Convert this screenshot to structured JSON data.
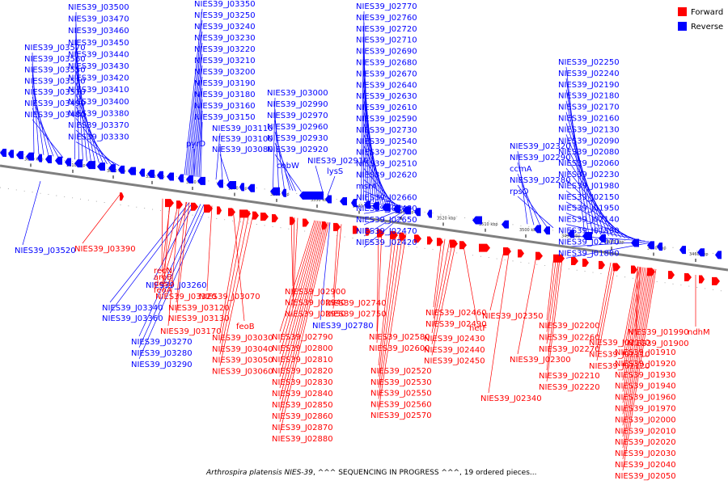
{
  "caption": {
    "organism": "Arthrospira platensis NIES-39",
    "status": ", ^^^ SEQUENCING IN PROGRESS ^^^, 19 ordered pieces..."
  },
  "legend": [
    {
      "label": "Forward",
      "color": "#ff0000"
    },
    {
      "label": "Reverse",
      "color": "#0000ff"
    }
  ],
  "colors": {
    "forward": "#ff0000",
    "reverse": "#0000ff",
    "backbone": "#7f7f7f"
  },
  "scale_ticks": [
    "3620 kbp",
    "3610 kbp",
    "3600 kbp",
    "3590 kbp",
    "3580 kbp",
    "3570 kbp",
    "3560 kbp",
    "3550 kbp",
    "3540 kbp",
    "3530 kbp",
    "3520 kbp",
    "3510 kbp",
    "3500 kbp",
    "3490 kbp",
    "3480 kbp",
    "3470 kbp",
    "3460 kbp"
  ],
  "reverse_labels_top": [
    "NIES39_J03500",
    "NIES39_J03470",
    "NIES39_J03460",
    "NIES39_J03450",
    "NIES39_J03440",
    "NIES39_J03430",
    "NIES39_J03420",
    "NIES39_J03410",
    "NIES39_J03400",
    "NIES39_J03380",
    "NIES39_J03370",
    "NIES39_J03330",
    "NIES39_J03570",
    "NIES39_J03560",
    "NIES39_J03550",
    "NIES39_J03530",
    "NIES39_J03510",
    "NIES39_J03490",
    "NIES39_J03480",
    "NIES39_J03350",
    "NIES39_J03250",
    "NIES39_J03240",
    "NIES39_J03230",
    "NIES39_J03220",
    "NIES39_J03210",
    "NIES39_J03200",
    "NIES39_J03190",
    "NIES39_J03180",
    "NIES39_J03160",
    "NIES39_J03150",
    "pyrD",
    "NIES39_J03110",
    "NIES39_J03100",
    "NIES39_J03080",
    "NIES39_J03000",
    "NIES39_J02990",
    "NIES39_J02970",
    "NIES39_J02960",
    "NIES39_J02930",
    "NIES39_J02920",
    "cobW",
    "NIES39_J02910",
    "lysS",
    "NIES39_J02770",
    "NIES39_J02760",
    "NIES39_J02720",
    "NIES39_J02710",
    "NIES39_J02690",
    "NIES39_J02680",
    "NIES39_J02670",
    "NIES39_J02640",
    "NIES39_J02630",
    "NIES39_J02610",
    "NIES39_J02590",
    "NIES39_J02730",
    "NIES39_J02540",
    "NIES39_J02700",
    "NIES39_J02510",
    "NIES39_J02620",
    "msrA",
    "NIES39_J02660",
    "NIES39_J02480",
    "NIES39_J02650",
    "NIES39_J02470",
    "NIES39_J02420",
    "NIES39_J02320",
    "NIES39_J02290",
    "ccmA",
    "NIES39_J02280",
    "rpsO",
    "NIES39_J02250",
    "NIES39_J02240",
    "NIES39_J02190",
    "NIES39_J02180",
    "NIES39_J02170",
    "NIES39_J02160",
    "NIES39_J02130",
    "NIES39_J02090",
    "NIES39_J02080",
    "NIES39_J02060",
    "NIES39_J02230",
    "NIES39_J01980",
    "NIES39_J02150",
    "NIES39_J01950",
    "NIES39_J02140",
    "NIES39_J01890",
    "NIES39_J02070",
    "NIES39_J01880"
  ],
  "reverse_labels_bottom": [
    "NIES39_J03520",
    "NIES39_J03260",
    "NIES39_J03340",
    "NIES39_J03360",
    "NIES39_J03270",
    "NIES39_J03280",
    "NIES39_J03290",
    "NIES39_J02780"
  ],
  "forward_labels": [
    "NIES39_J03390",
    "recN",
    "aroB",
    "desD",
    "feoA",
    "NIES39_J03320",
    "NIES39_J03120",
    "NIES39_J03130",
    "NIES39_J03070",
    "NIES39_J03170",
    "feoB",
    "NIES39_J03030",
    "NIES39_J03040",
    "NIES39_J03050",
    "NIES39_J03060",
    "NIES39_J02900",
    "NIES39_J02940",
    "NIES39_J02950",
    "NIES39_J02740",
    "NIES39_J02750",
    "NIES39_J02790",
    "NIES39_J02800",
    "NIES39_J02810",
    "NIES39_J02820",
    "NIES39_J02830",
    "NIES39_J02840",
    "NIES39_J02850",
    "NIES39_J02860",
    "NIES39_J02870",
    "NIES39_J02880",
    "NIES39_J02580",
    "NIES39_J02600",
    "NIES39_J02520",
    "NIES39_J02530",
    "NIES39_J02550",
    "NIES39_J02560",
    "NIES39_J02570",
    "NIES39_J02460",
    "NIES39_J02490",
    "hetF",
    "NIES39_J02430",
    "NIES39_J02440",
    "NIES39_J02450",
    "NIES39_J02350",
    "NIES39_J02340",
    "NIES39_J02200",
    "NIES39_J02260",
    "NIES39_J02270",
    "NIES39_J02300",
    "NIES39_J02210",
    "NIES39_J02220",
    "NIES39_J02100",
    "NIES39_J02110",
    "NIES39_J02120",
    "NIES39_J01990",
    "NIES39_J01900",
    "ndhM",
    "NIES39_J01910",
    "NIES39_J01920",
    "NIES39_J01930",
    "NIES39_J01940",
    "NIES39_J01960",
    "NIES39_J01970",
    "NIES39_J02000",
    "NIES39_J02010",
    "NIES39_J02020",
    "NIES39_J02030",
    "NIES39_J02040",
    "NIES39_J02050"
  ]
}
